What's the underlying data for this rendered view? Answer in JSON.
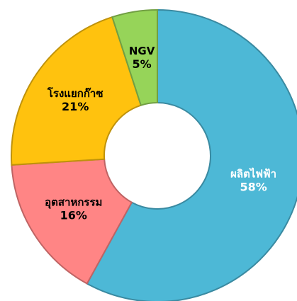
{
  "chart_data": {
    "type": "donut",
    "categories": [
      "ผลิตไฟฟ้า",
      "อุตสาหกรรม",
      "โรงแยกก๊าซ",
      "NGV"
    ],
    "values": [
      58,
      16,
      21,
      5
    ],
    "value_labels": [
      "58%",
      "16%",
      "21%",
      "5%"
    ],
    "colors": [
      "#4db8d6",
      "#ff8585",
      "#ffc20e",
      "#96d459"
    ],
    "label_colors": [
      "#ffffff",
      "#000000",
      "#000000",
      "#000000"
    ]
  }
}
